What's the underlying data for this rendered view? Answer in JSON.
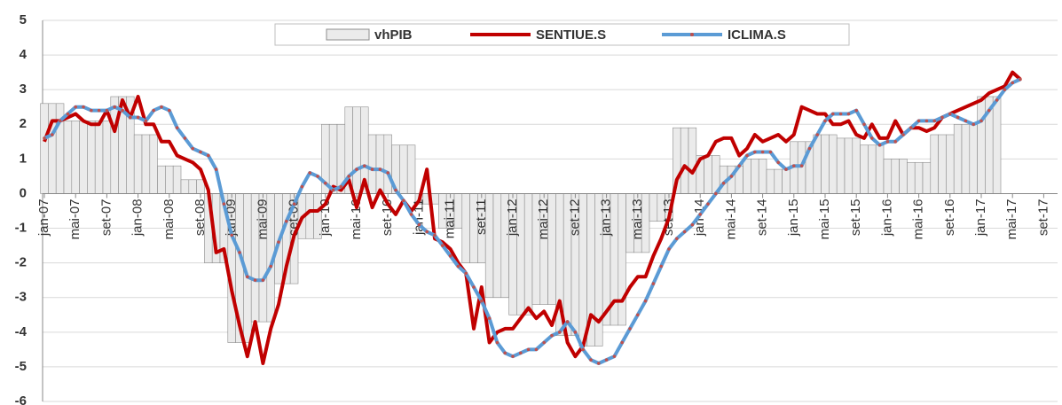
{
  "chart_data": {
    "type": "combo",
    "categories": [
      "jan-07",
      null,
      null,
      null,
      "mai-07",
      null,
      null,
      null,
      "set-07",
      null,
      null,
      null,
      "jan-08",
      null,
      null,
      null,
      "mai-08",
      null,
      null,
      null,
      "set-08",
      null,
      null,
      null,
      "jan-09",
      null,
      null,
      null,
      "mai-09",
      null,
      null,
      null,
      "set-09",
      null,
      null,
      null,
      "jan-10",
      null,
      null,
      null,
      "mai-10",
      null,
      null,
      null,
      "set-10",
      null,
      null,
      null,
      "jan-11",
      null,
      null,
      null,
      "mai-11",
      null,
      null,
      null,
      "set-11",
      null,
      null,
      null,
      "jan-12",
      null,
      null,
      null,
      "mai-12",
      null,
      null,
      null,
      "set-12",
      null,
      null,
      null,
      "jan-13",
      null,
      null,
      null,
      "mai-13",
      null,
      null,
      null,
      "set-13",
      null,
      null,
      null,
      "jan-14",
      null,
      null,
      null,
      "mai-14",
      null,
      null,
      null,
      "set-14",
      null,
      null,
      null,
      "jan-15",
      null,
      null,
      null,
      "mai-15",
      null,
      null,
      null,
      "set-15",
      null,
      null,
      null,
      "jan-16",
      null,
      null,
      null,
      "mai-16",
      null,
      null,
      null,
      "set-16",
      null,
      null,
      null,
      "jan-17",
      null,
      null,
      null,
      "mai-17",
      null,
      null,
      null,
      "set-17",
      null
    ],
    "series": [
      {
        "name": "vhPIB",
        "type": "bar",
        "color": "#ebebeb",
        "values": [
          2.6,
          2.6,
          2.6,
          2.1,
          2.1,
          2.1,
          2.1,
          2.1,
          2.1,
          2.8,
          2.8,
          2.8,
          1.7,
          1.7,
          1.7,
          0.8,
          0.8,
          0.8,
          0.4,
          0.4,
          0.4,
          -2.0,
          -2.0,
          -2.0,
          -4.3,
          -4.3,
          -4.3,
          -3.7,
          -3.7,
          -3.7,
          -2.6,
          -2.6,
          -2.6,
          -1.3,
          -1.3,
          -1.3,
          2.0,
          2.0,
          2.0,
          2.5,
          2.5,
          2.5,
          1.7,
          1.7,
          1.7,
          1.4,
          1.4,
          1.4,
          -0.3,
          -0.3,
          -0.3,
          -1.0,
          -1.0,
          -1.0,
          -2.0,
          -2.0,
          -2.0,
          -3.0,
          -3.0,
          -3.0,
          -3.5,
          -3.5,
          -3.5,
          -3.2,
          -3.2,
          -3.2,
          -4.1,
          -4.1,
          -4.1,
          -4.4,
          -4.4,
          -4.4,
          -3.8,
          -3.8,
          -3.8,
          -1.7,
          -1.7,
          -1.7,
          -0.8,
          -0.8,
          -0.8,
          1.9,
          1.9,
          1.9,
          1.1,
          1.1,
          1.1,
          0.8,
          0.8,
          0.8,
          1.0,
          1.0,
          1.0,
          0.7,
          0.7,
          0.7,
          1.5,
          1.5,
          1.5,
          1.7,
          1.7,
          1.7,
          1.6,
          1.6,
          1.6,
          1.4,
          1.4,
          1.4,
          1.0,
          1.0,
          1.0,
          0.9,
          0.9,
          0.9,
          1.7,
          1.7,
          1.7,
          2.0,
          2.0,
          2.0,
          2.8,
          2.8,
          2.8,
          null,
          null,
          null,
          null,
          null,
          null,
          null
        ]
      },
      {
        "name": "SENTIUE.S",
        "type": "line",
        "color": "#c00000",
        "values": [
          1.5,
          2.1,
          2.1,
          2.2,
          2.3,
          2.1,
          2.0,
          2.0,
          2.4,
          1.8,
          2.7,
          2.2,
          2.8,
          2.0,
          2.0,
          1.5,
          1.5,
          1.1,
          1.0,
          0.9,
          0.7,
          0.1,
          -1.7,
          -1.6,
          -2.8,
          -3.8,
          -4.7,
          -3.7,
          -4.9,
          -3.9,
          -3.2,
          -2.1,
          -1.2,
          -0.7,
          -0.5,
          -0.5,
          -0.3,
          0.2,
          0.1,
          0.4,
          -0.4,
          0.4,
          -0.4,
          0.1,
          -0.3,
          -0.6,
          -0.2,
          -0.5,
          -0.2,
          0.7,
          -1.3,
          -1.4,
          -1.6,
          -2.0,
          -2.3,
          -3.9,
          -2.7,
          -4.3,
          -4.0,
          -3.9,
          -3.9,
          -3.6,
          -3.3,
          -3.6,
          -3.4,
          -3.8,
          -3.1,
          -4.3,
          -4.7,
          -4.4,
          -3.5,
          -3.7,
          -3.4,
          -3.1,
          -3.1,
          -2.7,
          -2.4,
          -2.4,
          -1.8,
          -1.3,
          -0.7,
          0.4,
          0.8,
          0.6,
          1.0,
          1.1,
          1.5,
          1.6,
          1.6,
          1.1,
          1.3,
          1.7,
          1.5,
          1.6,
          1.7,
          1.5,
          1.7,
          2.5,
          2.4,
          2.3,
          2.3,
          2.0,
          2.0,
          2.1,
          1.7,
          1.6,
          2.0,
          1.6,
          1.6,
          2.1,
          1.7,
          1.9,
          1.9,
          1.8,
          1.9,
          2.2,
          2.3,
          2.4,
          2.5,
          2.6,
          2.7,
          2.9,
          3.0,
          3.1,
          3.5,
          3.3,
          null,
          null,
          null,
          null
        ]
      },
      {
        "name": "ICLIMA.S",
        "type": "line",
        "color": "#5b9bd5",
        "marker_color": "#c0504d",
        "values": [
          1.6,
          1.7,
          2.1,
          2.3,
          2.5,
          2.5,
          2.4,
          2.4,
          2.4,
          2.5,
          2.4,
          2.2,
          2.2,
          2.1,
          2.4,
          2.5,
          2.4,
          1.9,
          1.6,
          1.3,
          1.2,
          1.1,
          0.7,
          -0.3,
          -1.2,
          -1.7,
          -2.4,
          -2.5,
          -2.5,
          -2.1,
          -1.4,
          -0.8,
          -0.3,
          0.2,
          0.6,
          0.5,
          0.3,
          0.1,
          0.2,
          0.5,
          0.7,
          0.8,
          0.7,
          0.7,
          0.6,
          0.1,
          -0.2,
          -0.6,
          -0.9,
          -1.1,
          -1.2,
          -1.5,
          -1.8,
          -2.1,
          -2.3,
          -2.7,
          -3.1,
          -3.6,
          -4.3,
          -4.6,
          -4.7,
          -4.6,
          -4.5,
          -4.5,
          -4.3,
          -4.1,
          -4.0,
          -3.7,
          -4.0,
          -4.5,
          -4.8,
          -4.9,
          -4.8,
          -4.7,
          -4.3,
          -3.9,
          -3.5,
          -3.1,
          -2.6,
          -2.1,
          -1.6,
          -1.3,
          -1.1,
          -0.9,
          -0.6,
          -0.3,
          0.0,
          0.3,
          0.5,
          0.8,
          1.1,
          1.2,
          1.2,
          1.2,
          0.9,
          0.7,
          0.8,
          0.8,
          1.3,
          1.7,
          2.1,
          2.3,
          2.3,
          2.3,
          2.4,
          2.0,
          1.6,
          1.4,
          1.5,
          1.5,
          1.7,
          1.9,
          2.1,
          2.1,
          2.1,
          2.2,
          2.3,
          2.2,
          2.1,
          2.0,
          2.1,
          2.4,
          2.7,
          3.0,
          3.2,
          3.3,
          null,
          null,
          null,
          null
        ]
      }
    ],
    "ylim": [
      -6,
      5
    ],
    "yticks": [
      -6,
      -5,
      -4,
      -3,
      -2,
      -1,
      0,
      1,
      2,
      3,
      4,
      5
    ],
    "grid": true,
    "legend": "top"
  }
}
